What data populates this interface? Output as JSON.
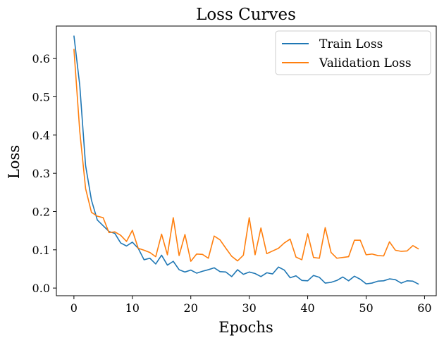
{
  "chart_data": {
    "type": "line",
    "title": "Loss Curves",
    "xlabel": "Epochs",
    "ylabel": "Loss",
    "xlim": [
      -3,
      62
    ],
    "ylim": [
      -0.02,
      0.685
    ],
    "x_ticks": [
      0,
      10,
      20,
      30,
      40,
      50,
      60
    ],
    "y_ticks": [
      0.0,
      0.1,
      0.2,
      0.3,
      0.4,
      0.5,
      0.6
    ],
    "y_tick_labels": [
      "0.0",
      "0.1",
      "0.2",
      "0.3",
      "0.4",
      "0.5",
      "0.6"
    ],
    "grid": false,
    "legend_position": "top-right",
    "x": [
      0,
      1,
      2,
      3,
      4,
      5,
      6,
      7,
      8,
      9,
      10,
      11,
      12,
      13,
      14,
      15,
      16,
      17,
      18,
      19,
      20,
      21,
      22,
      23,
      24,
      25,
      26,
      27,
      28,
      29,
      30,
      31,
      32,
      33,
      34,
      35,
      36,
      37,
      38,
      39,
      40,
      41,
      42,
      43,
      44,
      45,
      46,
      47,
      48,
      49,
      50,
      51,
      52,
      53,
      54,
      55,
      56,
      57,
      58,
      59
    ],
    "series": [
      {
        "name": "Train Loss",
        "color": "#1f77b4",
        "values": [
          0.66,
          0.53,
          0.32,
          0.23,
          0.178,
          0.163,
          0.148,
          0.143,
          0.118,
          0.11,
          0.12,
          0.104,
          0.074,
          0.078,
          0.063,
          0.086,
          0.06,
          0.07,
          0.048,
          0.042,
          0.047,
          0.039,
          0.044,
          0.048,
          0.053,
          0.043,
          0.042,
          0.03,
          0.048,
          0.036,
          0.042,
          0.038,
          0.03,
          0.04,
          0.037,
          0.055,
          0.047,
          0.027,
          0.032,
          0.02,
          0.019,
          0.033,
          0.028,
          0.013,
          0.015,
          0.02,
          0.029,
          0.019,
          0.031,
          0.023,
          0.011,
          0.013,
          0.018,
          0.019,
          0.024,
          0.022,
          0.013,
          0.019,
          0.018,
          0.01
        ]
      },
      {
        "name": "Validation Loss",
        "color": "#ff7f0e",
        "values": [
          0.625,
          0.41,
          0.26,
          0.198,
          0.188,
          0.184,
          0.145,
          0.147,
          0.138,
          0.122,
          0.151,
          0.104,
          0.099,
          0.093,
          0.082,
          0.141,
          0.087,
          0.184,
          0.085,
          0.14,
          0.07,
          0.089,
          0.088,
          0.078,
          0.136,
          0.126,
          0.104,
          0.083,
          0.071,
          0.086,
          0.184,
          0.087,
          0.157,
          0.09,
          0.097,
          0.104,
          0.118,
          0.128,
          0.081,
          0.074,
          0.142,
          0.08,
          0.078,
          0.158,
          0.093,
          0.078,
          0.08,
          0.082,
          0.125,
          0.125,
          0.087,
          0.089,
          0.085,
          0.084,
          0.121,
          0.099,
          0.096,
          0.097,
          0.111,
          0.102
        ]
      }
    ]
  }
}
